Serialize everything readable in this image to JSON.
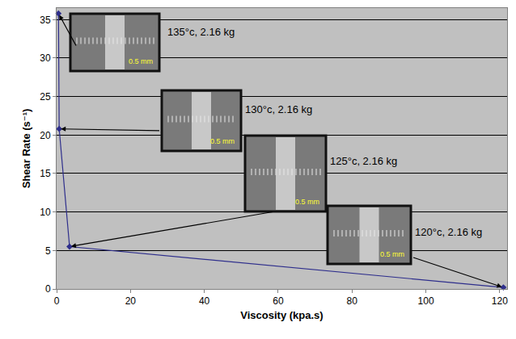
{
  "chart_data": {
    "type": "line",
    "x_label": "Viscosity (kpa.s)",
    "y_label": "Shear Rate (s⁻¹)",
    "x": [
      0.5,
      0.7,
      3.5,
      121
    ],
    "values": [
      35.8,
      20.8,
      5.5,
      0.2
    ],
    "point_labels": [
      "135°c, 2.16 kg",
      "130°c, 2.16 kg",
      "125°c, 2.16 kg",
      "120°c, 2.16 kg"
    ],
    "inset_scale_label": "0.5 mm",
    "color": "#2e2e8c",
    "marker": "diamond",
    "line_style": "solid",
    "xlim": [
      0,
      122
    ],
    "ylim": [
      0,
      36.5
    ],
    "xticks": [
      0,
      20,
      40,
      60,
      80,
      100,
      120
    ],
    "yticks": [
      0,
      5,
      10,
      15,
      20,
      25,
      30,
      35
    ],
    "grid": true
  }
}
